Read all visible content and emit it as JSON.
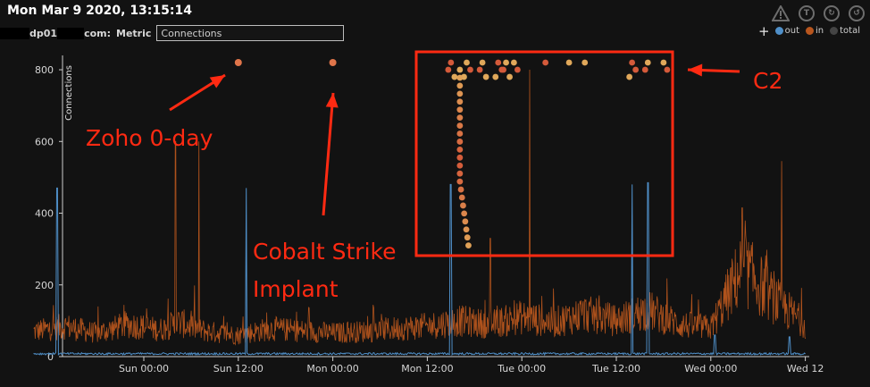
{
  "header": {
    "title": "Mon Mar 9 2020, 13:15:14",
    "host_part1": "dp01",
    "host_part2": "com:",
    "metric_label": "Metric",
    "metric_value": "Connections"
  },
  "legend": {
    "plus": "+",
    "items": [
      {
        "label": "out",
        "color": "#4f8fc8"
      },
      {
        "label": "in",
        "color": "#b8561e"
      },
      {
        "label": "total",
        "color": "#444444"
      }
    ]
  },
  "toolbar": {
    "icons": [
      "warning-icon",
      "t-circle-icon",
      "refresh-icon",
      "history-icon"
    ]
  },
  "annotations": {
    "zoho": "Zoho 0-day",
    "cobalt_line1": "Cobalt Strike",
    "cobalt_line2": "Implant",
    "c2": "C2",
    "color": "#ff2a12"
  },
  "chart_data": {
    "type": "line",
    "ylabel": "Connections",
    "ylim": [
      0,
      830
    ],
    "yticks": [
      "0",
      "200",
      "400",
      "600",
      "800"
    ],
    "xticks": [
      "Sun 00:00",
      "Sun 12:00",
      "Mon 00:00",
      "Mon 12:00",
      "Tue 00:00",
      "Tue 12:00",
      "Wed 00:00",
      "Wed 12"
    ],
    "grid": false,
    "legend_position": "top-right",
    "series": [
      {
        "name": "in",
        "color": "#b8561e",
        "points": [
          [
            "Sat 10:00",
            70
          ],
          [
            "Sat 14:00",
            85
          ],
          [
            "Sat 18:00",
            65
          ],
          [
            "Sat 22:00",
            90
          ],
          [
            "Sun 02:00",
            75
          ],
          [
            "Sun 04:30",
            95
          ],
          [
            "Sun 08:00",
            70
          ],
          [
            "Sun 12:00",
            60
          ],
          [
            "Sun 16:00",
            78
          ],
          [
            "Sun 20:00",
            72
          ],
          [
            "Mon 00:00",
            66
          ],
          [
            "Mon 04:00",
            70
          ],
          [
            "Mon 08:00",
            78
          ],
          [
            "Mon 12:00",
            85
          ],
          [
            "Mon 16:00",
            100
          ],
          [
            "Mon 20:00",
            90
          ],
          [
            "Tue 00:00",
            110
          ],
          [
            "Tue 04:00",
            95
          ],
          [
            "Tue 08:00",
            120
          ],
          [
            "Tue 12:00",
            100
          ],
          [
            "Tue 16:00",
            130
          ],
          [
            "Tue 20:00",
            90
          ],
          [
            "Wed 00:00",
            80
          ],
          [
            "Wed 04:00",
            250
          ],
          [
            "Wed 08:00",
            160
          ],
          [
            "Wed 12:00",
            90
          ]
        ],
        "peaks": [
          [
            "Sun 04:00",
            600
          ],
          [
            "Sun 07:00",
            600
          ],
          [
            "Mon 20:00",
            330
          ],
          [
            "Tue 01:00",
            800
          ],
          [
            "Wed 04:00",
            415
          ],
          [
            "Wed 09:00",
            545
          ]
        ]
      },
      {
        "name": "out",
        "color": "#4f8fc8",
        "baseline": 5,
        "spikes": [
          [
            "Sat 13:00",
            470
          ],
          [
            "Sun 13:00",
            470
          ],
          [
            "Mon 15:00",
            480
          ],
          [
            "Tue 14:00",
            480
          ],
          [
            "Tue 16:00",
            485
          ],
          [
            "Wed 00:30",
            60
          ],
          [
            "Wed 10:00",
            55
          ]
        ]
      }
    ],
    "event_markers": [
      {
        "x": "Sun 12:00",
        "y": 820
      },
      {
        "x": "Mon 00:00",
        "y": 820
      }
    ],
    "c2_beacon_dots": {
      "top_row_x": [
        "Mon 15:00",
        "Mon 17:00",
        "Mon 19:00",
        "Mon 21:00",
        "Mon 22:00",
        "Mon 23:00",
        "Tue 03:00",
        "Tue 06:00",
        "Tue 08:00",
        "Tue 14:00",
        "Tue 16:00",
        "Tue 18:00"
      ],
      "column_x": "Mon 15:00",
      "column_y_range": [
        310,
        800
      ],
      "color_start": "#e0a85a",
      "color_end": "#d45a3a"
    }
  }
}
